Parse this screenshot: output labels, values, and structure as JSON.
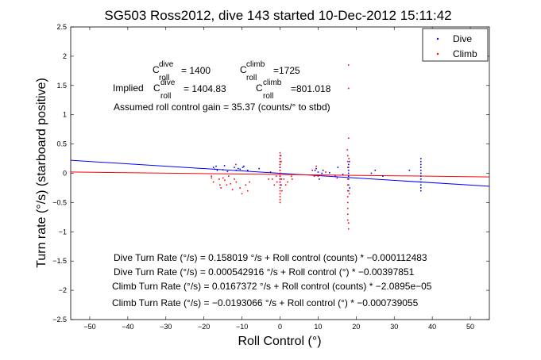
{
  "chart_data": {
    "type": "scatter",
    "title": "SG503 Ross2012, dive 143 started 10-Dec-2012 15:11:42",
    "xlabel": "Roll Control (°)",
    "ylabel": "Turn rate (°/s) (starboard positive)",
    "xlim": [
      -55,
      55
    ],
    "ylim": [
      -2.5,
      2.5
    ],
    "xticks": [
      -50,
      -40,
      -30,
      -20,
      -10,
      0,
      10,
      20,
      30,
      40,
      50
    ],
    "yticks": [
      -2.5,
      -2,
      -1.5,
      -1,
      -0.5,
      0,
      0.5,
      1,
      1.5,
      2,
      2.5
    ],
    "xtick_labels": [
      "−50",
      "−40",
      "−30",
      "−20",
      "−10",
      "0",
      "10",
      "20",
      "30",
      "40",
      "50"
    ],
    "ytick_labels": [
      "−2.5",
      "−2",
      "−1.5",
      "−1",
      "−0.5",
      "0",
      "0.5",
      "1",
      "1.5",
      "2",
      "2.5"
    ],
    "grid": false,
    "legend_position": "top-right",
    "series": [
      {
        "name": "Dive",
        "color": "#0000ff",
        "marker": "dot",
        "points": [
          [
            -17.5,
            0.1
          ],
          [
            -17.2,
            0.07
          ],
          [
            -16.8,
            0.12
          ],
          [
            -16.5,
            0.05
          ],
          [
            -15,
            0.06
          ],
          [
            -14.6,
            0.13
          ],
          [
            -13.8,
            0.03
          ],
          [
            -12,
            0.1
          ],
          [
            -11.5,
            0.05
          ],
          [
            -11,
            0.08
          ],
          [
            -10.5,
            0.07
          ],
          [
            -9.8,
            0.1
          ],
          [
            -9.5,
            0.12
          ],
          [
            -8.5,
            0.05
          ],
          [
            -5.5,
            0.08
          ],
          [
            -2.5,
            0.02
          ],
          [
            0,
            0.25
          ],
          [
            0,
            0.2
          ],
          [
            0,
            0.15
          ],
          [
            0,
            0.1
          ],
          [
            0,
            0.05
          ],
          [
            0,
            0.0
          ],
          [
            0,
            -0.05
          ],
          [
            0,
            -0.1
          ],
          [
            0,
            -0.15
          ],
          [
            0.2,
            0.3
          ],
          [
            0.3,
            -0.2
          ],
          [
            9.2,
            0.05
          ],
          [
            9.5,
            0.08
          ],
          [
            10,
            0.02
          ],
          [
            10.3,
            -0.1
          ],
          [
            11,
            0.0
          ],
          [
            11.3,
            0.05
          ],
          [
            13,
            0.01
          ],
          [
            14.5,
            -0.05
          ],
          [
            15.2,
            0.1
          ],
          [
            16.5,
            -0.02
          ],
          [
            18,
            0.15
          ],
          [
            18,
            0.1
          ],
          [
            18,
            0.05
          ],
          [
            18,
            0.0
          ],
          [
            18,
            -0.05
          ],
          [
            18,
            -0.1
          ],
          [
            18,
            -0.2
          ],
          [
            18,
            -0.3
          ],
          [
            18.2,
            0.2
          ],
          [
            18.3,
            -0.25
          ],
          [
            24,
            0.0
          ],
          [
            25,
            0.05
          ],
          [
            27,
            -0.05
          ],
          [
            34,
            0.05
          ],
          [
            37,
            0.25
          ],
          [
            37,
            0.2
          ],
          [
            37,
            0.15
          ],
          [
            37,
            0.1
          ],
          [
            37,
            0.05
          ],
          [
            37,
            0.0
          ],
          [
            37,
            -0.05
          ],
          [
            37,
            -0.1
          ],
          [
            37,
            -0.15
          ],
          [
            37,
            -0.2
          ],
          [
            37,
            -0.25
          ],
          [
            37,
            -0.3
          ]
        ]
      },
      {
        "name": "Climb",
        "color": "#ff0000",
        "marker": "dot",
        "points": [
          [
            -18,
            -0.05
          ],
          [
            -18,
            -0.08
          ],
          [
            -17.5,
            -0.15
          ],
          [
            -16,
            -0.1
          ],
          [
            -15.8,
            -0.2
          ],
          [
            -15.5,
            -0.25
          ],
          [
            -15,
            -0.08
          ],
          [
            -14.5,
            -0.12
          ],
          [
            -14,
            -0.2
          ],
          [
            -13.5,
            -0.05
          ],
          [
            -13,
            -0.18
          ],
          [
            -12.5,
            -0.28
          ],
          [
            -12,
            -0.1
          ],
          [
            -11.6,
            0.15
          ],
          [
            -11.5,
            -0.15
          ],
          [
            -10.5,
            -0.25
          ],
          [
            -10,
            -0.35
          ],
          [
            -9,
            -0.2
          ],
          [
            -8.5,
            -0.3
          ],
          [
            -8,
            -0.15
          ],
          [
            -3,
            -0.1
          ],
          [
            -2,
            -0.1
          ],
          [
            -1.5,
            -0.2
          ],
          [
            -1,
            -0.05
          ],
          [
            -0.8,
            -0.15
          ],
          [
            0,
            0.35
          ],
          [
            0,
            0.3
          ],
          [
            0,
            0.25
          ],
          [
            0,
            0.2
          ],
          [
            0,
            0.15
          ],
          [
            0,
            0.1
          ],
          [
            0,
            0.05
          ],
          [
            0,
            0.0
          ],
          [
            0,
            -0.05
          ],
          [
            0,
            -0.1
          ],
          [
            0,
            -0.15
          ],
          [
            0,
            -0.2
          ],
          [
            0,
            -0.25
          ],
          [
            0,
            -0.3
          ],
          [
            0,
            -0.35
          ],
          [
            0,
            -0.4
          ],
          [
            0,
            -0.45
          ],
          [
            0,
            -0.5
          ],
          [
            0.3,
            0.2
          ],
          [
            0.4,
            -0.1
          ],
          [
            0.5,
            -0.3
          ],
          [
            1,
            -0.1
          ],
          [
            1.5,
            -0.2
          ],
          [
            2,
            -0.15
          ],
          [
            3,
            -0.05
          ],
          [
            3.2,
            -0.1
          ],
          [
            8.5,
            0.05
          ],
          [
            9,
            -0.05
          ],
          [
            9.5,
            0.12
          ],
          [
            10,
            -0.05
          ],
          [
            12,
            0.02
          ],
          [
            15,
            -0.08
          ],
          [
            17.7,
            0.4
          ],
          [
            17.8,
            0.3
          ],
          [
            17.8,
            0.2
          ],
          [
            17.8,
            0.1
          ],
          [
            17.8,
            -0.1
          ],
          [
            17.8,
            -0.2
          ],
          [
            17.8,
            -0.3
          ],
          [
            17.8,
            -0.4
          ],
          [
            17.8,
            -0.5
          ],
          [
            17.8,
            -0.6
          ],
          [
            17.8,
            -0.7
          ],
          [
            17.8,
            -0.8
          ],
          [
            18,
            1.85
          ],
          [
            18,
            1.45
          ],
          [
            18,
            0.6
          ],
          [
            18,
            -0.85
          ],
          [
            18,
            -0.95
          ],
          [
            18.1,
            0.25
          ],
          [
            18.2,
            -0.35
          ]
        ]
      }
    ],
    "fit_lines": [
      {
        "series": "Dive",
        "color": "#0000ff",
        "x": [
          -55,
          55
        ],
        "y": [
          0.2215,
          -0.2222
        ]
      },
      {
        "series": "Climb",
        "color": "#ff0000",
        "x": [
          -55,
          55
        ],
        "y": [
          0.0214,
          -0.0619
        ]
      }
    ],
    "annotations": {
      "c_roll_dive": {
        "symbol": "C",
        "sup": "dive",
        "sub": "roll",
        "value": "= 1400"
      },
      "c_roll_climb": {
        "symbol": "C",
        "sup": "climb",
        "sub": "roll",
        "value": "=1725"
      },
      "implied_prefix": "Implied",
      "implied_dive": {
        "symbol": "C",
        "sup": "dive",
        "sub": "roll",
        "value": "= 1404.83"
      },
      "implied_climb": {
        "symbol": "C",
        "sup": "climb",
        "sub": "roll",
        "value": "=801.018"
      },
      "assumed_gain": "Assumed roll control gain = 35.37 (counts/° to stbd)",
      "regressions": [
        "Dive Turn Rate (°/s) = 0.158019 °/s + Roll control (counts) * −0.000112483",
        "Dive Turn Rate (°/s) = 0.000542916 °/s + Roll control (°) * −0.00397851",
        "Climb Turn Rate (°/s) = 0.0167372 °/s + Roll control (counts) * −2.0895e−05",
        "Climb Turn Rate (°/s) = −0.0193066 °/s + Roll control (°) * −0.000739055"
      ]
    }
  }
}
